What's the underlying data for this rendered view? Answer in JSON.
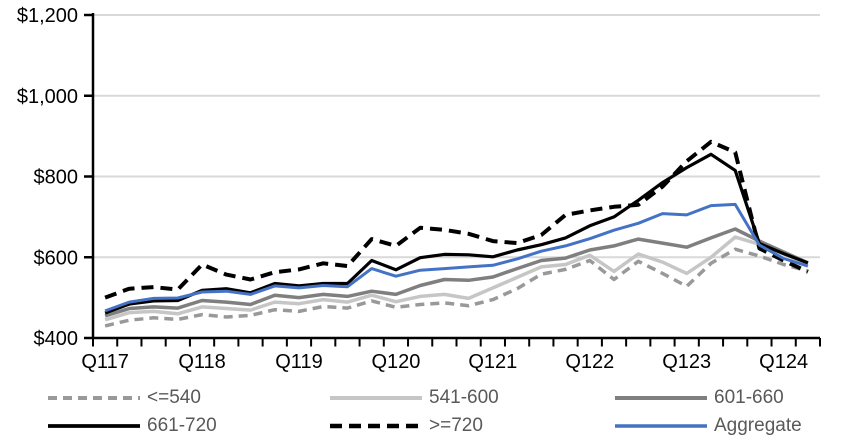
{
  "chart_data": {
    "type": "line",
    "title": "",
    "x_axis": {
      "shown_labels": [
        "Q117",
        "Q118",
        "Q119",
        "Q120",
        "Q121",
        "Q122",
        "Q123",
        "Q124"
      ],
      "label_every_n_categories": 4
    },
    "y_axis": {
      "tick_labels": [
        "$400",
        "$600",
        "$800",
        "$1,000",
        "$1,200"
      ],
      "tick_values": [
        400,
        600,
        800,
        1000,
        1200
      ],
      "min": 400,
      "max": 1200,
      "grid": true
    },
    "categories": [
      "Q117",
      "Q217",
      "Q317",
      "Q417",
      "Q118",
      "Q218",
      "Q318",
      "Q418",
      "Q119",
      "Q219",
      "Q319",
      "Q419",
      "Q120",
      "Q220",
      "Q320",
      "Q420",
      "Q121",
      "Q221",
      "Q321",
      "Q421",
      "Q122",
      "Q222",
      "Q322",
      "Q422",
      "Q123",
      "Q223",
      "Q323",
      "Q423",
      "Q124",
      "Q224"
    ],
    "series": [
      {
        "name": "<=540",
        "color": "#999999",
        "dash": "9 6",
        "width": 3.5,
        "values": [
          430,
          444,
          450,
          446,
          458,
          452,
          456,
          470,
          466,
          478,
          474,
          492,
          476,
          483,
          487,
          480,
          495,
          522,
          558,
          570,
          592,
          545,
          590,
          560,
          528,
          585,
          620,
          603,
          582,
          566
        ]
      },
      {
        "name": "541-600",
        "color": "#C6C6C6",
        "dash": null,
        "width": 3.5,
        "values": [
          445,
          463,
          466,
          460,
          477,
          473,
          469,
          489,
          485,
          495,
          489,
          506,
          490,
          503,
          508,
          498,
          524,
          550,
          576,
          582,
          605,
          565,
          608,
          588,
          560,
          600,
          650,
          632,
          608,
          583
        ]
      },
      {
        "name": "601-660",
        "color": "#7F7F7F",
        "dash": null,
        "width": 3.5,
        "values": [
          455,
          473,
          477,
          474,
          493,
          489,
          483,
          506,
          500,
          508,
          503,
          516,
          508,
          530,
          545,
          543,
          551,
          572,
          592,
          598,
          618,
          628,
          645,
          635,
          625,
          648,
          670,
          640,
          613,
          586
        ]
      },
      {
        "name": "661-720",
        "color": "#000000",
        "dash": null,
        "width": 3.2,
        "values": [
          462,
          484,
          492,
          493,
          518,
          522,
          512,
          535,
          529,
          535,
          535,
          592,
          569,
          599,
          607,
          606,
          601,
          618,
          631,
          648,
          678,
          700,
          741,
          785,
          822,
          855,
          815,
          634,
          609,
          586
        ]
      },
      {
        "name": ">=720",
        "color": "#000000",
        "dash": "12 7",
        "width": 4,
        "values": [
          500,
          522,
          526,
          520,
          582,
          557,
          545,
          563,
          570,
          585,
          578,
          645,
          628,
          673,
          668,
          658,
          640,
          635,
          655,
          705,
          716,
          725,
          730,
          775,
          838,
          886,
          860,
          622,
          592,
          564
        ]
      },
      {
        "name": "Aggregate",
        "color": "#4472C4",
        "dash": null,
        "width": 3,
        "values": [
          467,
          489,
          498,
          499,
          514,
          516,
          508,
          529,
          524,
          530,
          527,
          572,
          553,
          568,
          572,
          576,
          580,
          596,
          615,
          628,
          646,
          667,
          684,
          708,
          705,
          728,
          731,
          630,
          597,
          578
        ]
      }
    ],
    "legend": {
      "position": "bottom",
      "rows": 2,
      "order": [
        "<=540",
        "541-600",
        "601-660",
        "661-720",
        ">=720",
        "Aggregate"
      ]
    },
    "style": {
      "gridline_color": "#D9D9D9",
      "axis_color": "#000000",
      "axis_label_color": "#000000",
      "legend_text_color": "#595959"
    }
  }
}
